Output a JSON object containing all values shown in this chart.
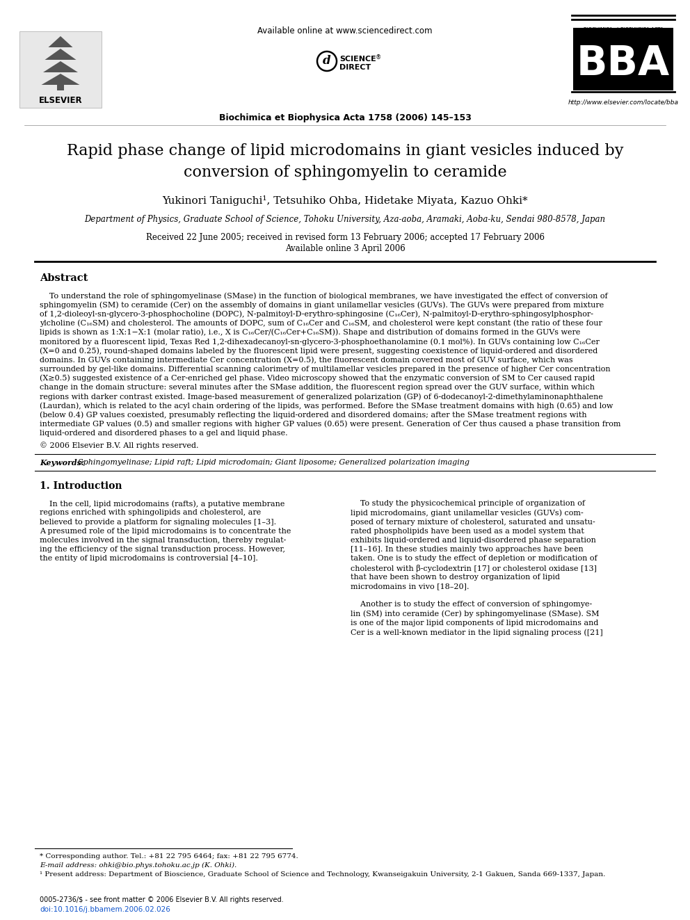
{
  "background_color": "#ffffff",
  "header_available_online": "Available online at www.sciencedirect.com",
  "journal_info": "Biochimica et Biophysica Acta 1758 (2006) 145–153",
  "journal_url": "http://www.elsevier.com/locate/bba",
  "title_line1": "Rapid phase change of lipid microdomains in giant vesicles induced by",
  "title_line2": "conversion of sphingomyelin to ceramide",
  "authors": "Yukinori Taniguchi¹, Tetsuhiko Ohba, Hidetake Miyata, Kazuo Ohki*",
  "affiliation": "Department of Physics, Graduate School of Science, Tohoku University, Aza-aoba, Aramaki, Aoba-ku, Sendai 980-8578, Japan",
  "received_line1": "Received 22 June 2005; received in revised form 13 February 2006; accepted 17 February 2006",
  "received_line2": "Available online 3 April 2006",
  "abstract_title": "Abstract",
  "abstract_lines": [
    "    To understand the role of sphingomyelinase (SMase) in the function of biological membranes, we have investigated the effect of conversion of",
    "sphingomyelin (SM) to ceramide (Cer) on the assembly of domains in giant unilamellar vesicles (GUVs). The GUVs were prepared from mixture",
    "of 1,2-dioleoyl-sn-glycero-3-phosphocholine (DOPC), N-palmitoyl-D-erythro-sphingosine (C₁₆Cer), N-palmitoyl-D-erythro-sphingosylphosphor-",
    "ylcholine (C₁₆SM) and cholesterol. The amounts of DOPC, sum of C₁₆Cer and C₁₆SM, and cholesterol were kept constant (the ratio of these four",
    "lipids is shown as 1:X:1−X:1 (molar ratio), i.e., X is C₁₆Cer/(C₁₆Cer+C₁₆SM)). Shape and distribution of domains formed in the GUVs were",
    "monitored by a fluorescent lipid, Texas Red 1,2-dihexadecanoyl-sn-glycero-3-phosphoethanolamine (0.1 mol%). In GUVs containing low C₁₆Cer",
    "(X=0 and 0.25), round-shaped domains labeled by the fluorescent lipid were present, suggesting coexistence of liquid-ordered and disordered",
    "domains. In GUVs containing intermediate Cer concentration (X=0.5), the fluorescent domain covered most of GUV surface, which was",
    "surrounded by gel-like domains. Differential scanning calorimetry of multilamellar vesicles prepared in the presence of higher Cer concentration",
    "(X≥0.5) suggested existence of a Cer-enriched gel phase. Video microscopy showed that the enzymatic conversion of SM to Cer caused rapid",
    "change in the domain structure: several minutes after the SMase addition, the fluorescent region spread over the GUV surface, within which",
    "regions with darker contrast existed. Image-based measurement of generalized polarization (GP) of 6-dodecanoyl-2-dimethylaminonaphthalene",
    "(Laurdan), which is related to the acyl chain ordering of the lipids, was performed. Before the SMase treatment domains with high (0.65) and low",
    "(below 0.4) GP values coexisted, presumably reflecting the liquid-ordered and disordered domains; after the SMase treatment regions with",
    "intermediate GP values (0.5) and smaller regions with higher GP values (0.65) were present. Generation of Cer thus caused a phase transition from",
    "liquid-ordered and disordered phases to a gel and liquid phase."
  ],
  "abstract_copyright": "© 2006 Elsevier B.V. All rights reserved.",
  "keywords_label": "Keywords:",
  "keywords": "Sphingomyelinase; Lipid raft; Lipid microdomain; Giant liposome; Generalized polarization imaging",
  "section1_title": "1. Introduction",
  "section1_col1_lines": [
    "    In the cell, lipid microdomains (rafts), a putative membrane",
    "regions enriched with sphingolipids and cholesterol, are",
    "believed to provide a platform for signaling molecules [1–3].",
    "A presumed role of the lipid microdomains is to concentrate the",
    "molecules involved in the signal transduction, thereby regulat-",
    "ing the efficiency of the signal transduction process. However,",
    "the entity of lipid microdomains is controversial [4–10]."
  ],
  "section1_col2_lines": [
    "    To study the physicochemical principle of organization of",
    "lipid microdomains, giant unilamellar vesicles (GUVs) com-",
    "posed of ternary mixture of cholesterol, saturated and unsatu-",
    "rated phospholipids have been used as a model system that",
    "exhibits liquid-ordered and liquid-disordered phase separation",
    "[11–16]. In these studies mainly two approaches have been",
    "taken. One is to study the effect of depletion or modification of",
    "cholesterol with β-cyclodextrin [17] or cholesterol oxidase [13]",
    "that have been shown to destroy organization of lipid",
    "microdomains in vivo [18–20].",
    "",
    "    Another is to study the effect of conversion of sphingomye-",
    "lin (SM) into ceramide (Cer) by sphingomyelinase (SMase). SM",
    "is one of the major lipid components of lipid microdomains and",
    "Cer is a well-known mediator in the lipid signaling process ([21]"
  ],
  "footnote_corresponding": "* Corresponding author. Tel.: +81 22 795 6464; fax: +81 22 795 6774.",
  "footnote_email": "E-mail address: ohki@bio.phys.tohoku.ac.jp (K. Ohki).",
  "footnote_1": "¹ Present address: Department of Bioscience, Graduate School of Science and Technology, Kwanseigakuin University, 2-1 Gakuen, Sanda 669-1337, Japan.",
  "footer_issn": "0005-2736/$ - see front matter © 2006 Elsevier B.V. All rights reserved.",
  "footer_doi": "doi:10.1016/j.bbamem.2006.02.026"
}
